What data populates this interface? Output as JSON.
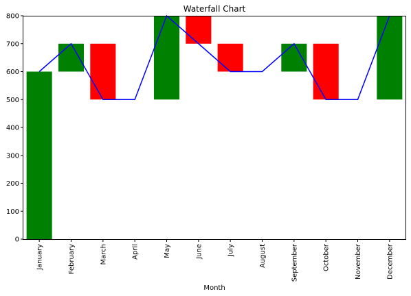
{
  "chart_data": {
    "type": "bar",
    "title": "Waterfall Chart",
    "xlabel": "Month",
    "ylabel": "",
    "ylim": [
      0,
      800
    ],
    "yticks": [
      0,
      100,
      200,
      300,
      400,
      500,
      600,
      700,
      800
    ],
    "categories": [
      "January",
      "February",
      "March",
      "April",
      "May",
      "June",
      "July",
      "August",
      "September",
      "October",
      "November",
      "December"
    ],
    "bars": [
      {
        "bottom": 0,
        "top": 600,
        "color": "#008000"
      },
      {
        "bottom": 600,
        "top": 700,
        "color": "#008000"
      },
      {
        "bottom": 500,
        "top": 700,
        "color": "#ff0000"
      },
      null,
      {
        "bottom": 500,
        "top": 800,
        "color": "#008000"
      },
      {
        "bottom": 700,
        "top": 800,
        "color": "#ff0000"
      },
      {
        "bottom": 600,
        "top": 700,
        "color": "#ff0000"
      },
      null,
      {
        "bottom": 600,
        "top": 700,
        "color": "#008000"
      },
      {
        "bottom": 500,
        "top": 700,
        "color": "#ff0000"
      },
      null,
      {
        "bottom": 500,
        "top": 800,
        "color": "#008000"
      }
    ],
    "line": {
      "color": "#0000ff",
      "values": [
        600,
        700,
        500,
        500,
        800,
        700,
        600,
        600,
        700,
        500,
        500,
        800
      ]
    },
    "grid": false,
    "legend": "none"
  }
}
